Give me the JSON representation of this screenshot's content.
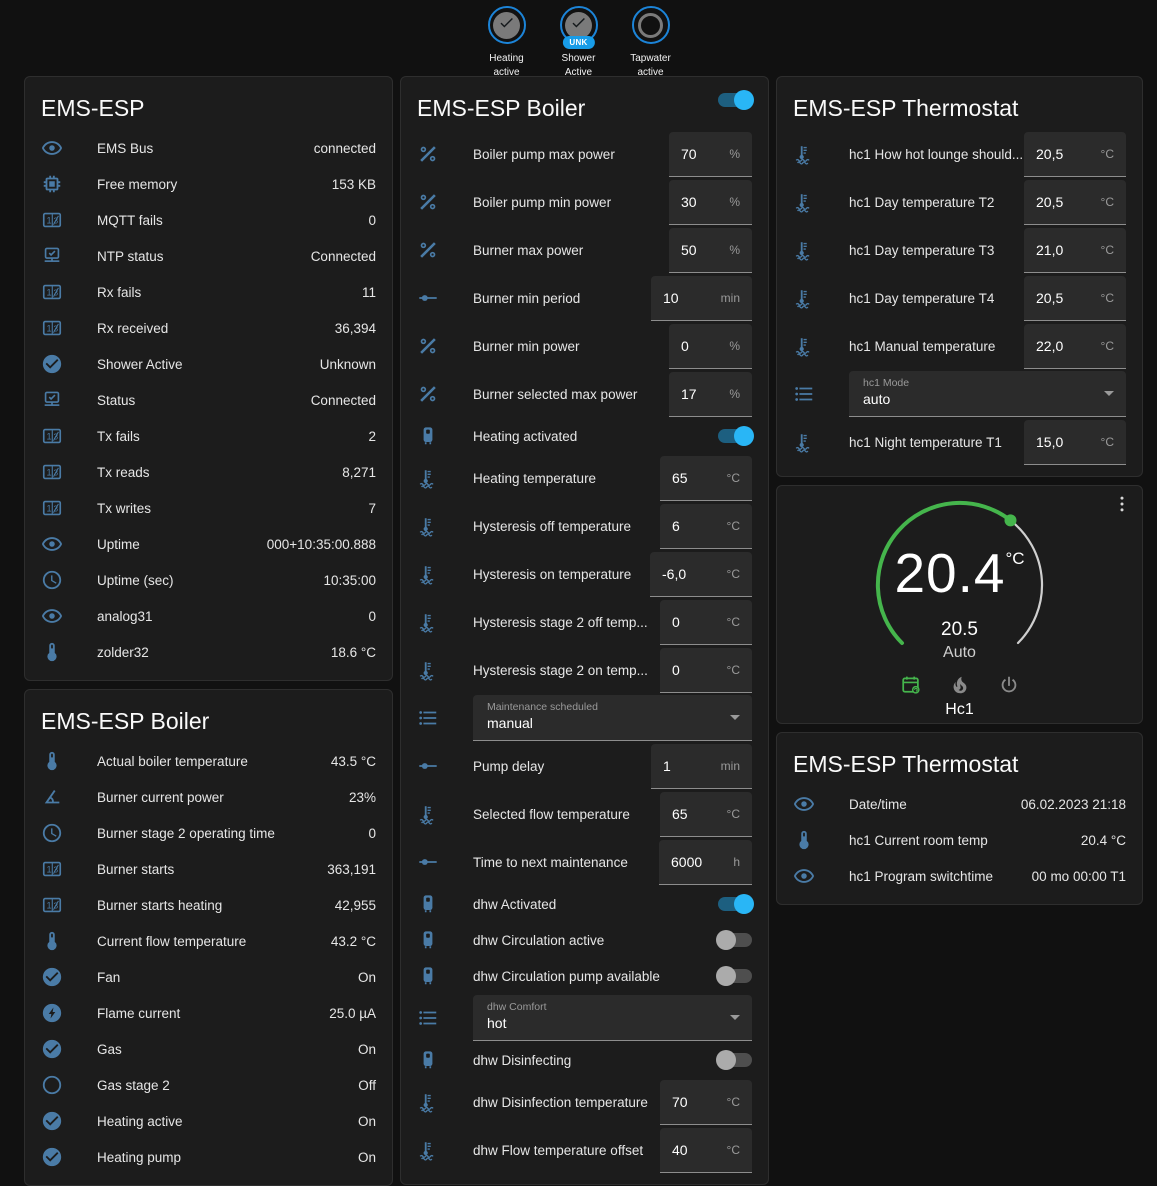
{
  "theme": {
    "page_bg": "#111111",
    "card_bg": "#1c1c1c",
    "icon_color": "#4a7ba6",
    "accent_blue": "#29b6f6",
    "badge_ring_blue": "#1c84d8",
    "chip_blue": "#189ce8",
    "dial_green": "#45b54c"
  },
  "badges": [
    {
      "label": "Heating active",
      "icon": "check",
      "state": "on"
    },
    {
      "label": "Shower Active",
      "icon": "check",
      "state": "on",
      "chip": "UNK"
    },
    {
      "label": "Tapwater active",
      "icon": "circle-outline",
      "state": "off"
    }
  ],
  "cards": {
    "ems_esp": {
      "title": "EMS-ESP",
      "rows": [
        {
          "icon": "eye",
          "label": "EMS Bus",
          "value": "connected"
        },
        {
          "icon": "chip",
          "label": "Free memory",
          "value": "153 KB"
        },
        {
          "icon": "counter",
          "label": "MQTT fails",
          "value": "0"
        },
        {
          "icon": "network",
          "label": "NTP status",
          "value": "Connected"
        },
        {
          "icon": "counter",
          "label": "Rx fails",
          "value": "11"
        },
        {
          "icon": "counter",
          "label": "Rx received",
          "value": "36,394"
        },
        {
          "icon": "check-circle",
          "label": "Shower Active",
          "value": "Unknown"
        },
        {
          "icon": "network",
          "label": "Status",
          "value": "Connected"
        },
        {
          "icon": "counter",
          "label": "Tx fails",
          "value": "2"
        },
        {
          "icon": "counter",
          "label": "Tx reads",
          "value": "8,271"
        },
        {
          "icon": "counter",
          "label": "Tx writes",
          "value": "7"
        },
        {
          "icon": "eye",
          "label": "Uptime",
          "value": "000+10:35:00.888"
        },
        {
          "icon": "clock",
          "label": "Uptime (sec)",
          "value": "10:35:00"
        },
        {
          "icon": "eye",
          "label": "analog31",
          "value": "0"
        },
        {
          "icon": "thermometer",
          "label": "zolder32",
          "value": "18.6 °C"
        }
      ]
    },
    "boiler_sensors": {
      "title": "EMS-ESP Boiler",
      "rows": [
        {
          "icon": "thermometer",
          "label": "Actual boiler temperature",
          "value": "43.5 °C"
        },
        {
          "icon": "angle",
          "label": "Burner current power",
          "value": "23%"
        },
        {
          "icon": "clock",
          "label": "Burner stage 2 operating time",
          "value": "0"
        },
        {
          "icon": "counter",
          "label": "Burner starts",
          "value": "363,191"
        },
        {
          "icon": "counter",
          "label": "Burner starts heating",
          "value": "42,955"
        },
        {
          "icon": "thermometer",
          "label": "Current flow temperature",
          "value": "43.2 °C"
        },
        {
          "icon": "check-circle",
          "label": "Fan",
          "value": "On"
        },
        {
          "icon": "flash-circle",
          "label": "Flame current",
          "value": "25.0 µA"
        },
        {
          "icon": "check-circle",
          "label": "Gas",
          "value": "On"
        },
        {
          "icon": "circle-outline",
          "label": "Gas stage 2",
          "value": "Off"
        },
        {
          "icon": "check-circle",
          "label": "Heating active",
          "value": "On"
        },
        {
          "icon": "check-circle",
          "label": "Heating pump",
          "value": "On"
        }
      ]
    },
    "boiler_controls": {
      "title": "EMS-ESP Boiler",
      "header_toggle": "on",
      "rows": [
        {
          "icon": "percent",
          "label": "Boiler pump max power",
          "value": "70",
          "unit": "%"
        },
        {
          "icon": "percent",
          "label": "Boiler pump min power",
          "value": "30",
          "unit": "%"
        },
        {
          "icon": "percent",
          "label": "Burner max power",
          "value": "50",
          "unit": "%"
        },
        {
          "icon": "slider",
          "label": "Burner min period",
          "value": "10",
          "unit": "min"
        },
        {
          "icon": "percent",
          "label": "Burner min power",
          "value": "0",
          "unit": "%"
        },
        {
          "icon": "percent",
          "label": "Burner selected max power",
          "value": "17",
          "unit": "%"
        },
        {
          "icon": "water-boiler",
          "label": "Heating activated",
          "toggle": "on"
        },
        {
          "icon": "coolant",
          "label": "Heating temperature",
          "value": "65",
          "unit": "°C"
        },
        {
          "icon": "coolant",
          "label": "Hysteresis off temperature",
          "value": "6",
          "unit": "°C"
        },
        {
          "icon": "coolant",
          "label": "Hysteresis on temperature",
          "value": "-6,0",
          "unit": "°C"
        },
        {
          "icon": "coolant",
          "label": "Hysteresis stage 2 off temp...",
          "value": "0",
          "unit": "°C"
        },
        {
          "icon": "coolant",
          "label": "Hysteresis stage 2 on temp...",
          "value": "0",
          "unit": "°C"
        },
        {
          "icon": "list",
          "select_label": "Maintenance scheduled",
          "value": "manual"
        },
        {
          "icon": "slider",
          "label": "Pump delay",
          "value": "1",
          "unit": "min"
        },
        {
          "icon": "coolant",
          "label": "Selected flow temperature",
          "value": "65",
          "unit": "°C"
        },
        {
          "icon": "slider",
          "label": "Time to next maintenance",
          "value": "6000",
          "unit": "h"
        },
        {
          "icon": "water-boiler",
          "label": "dhw Activated",
          "toggle": "on"
        },
        {
          "icon": "water-boiler",
          "label": "dhw Circulation active",
          "toggle": "off"
        },
        {
          "icon": "water-boiler",
          "label": "dhw Circulation pump available",
          "toggle": "off"
        },
        {
          "icon": "list",
          "select_label": "dhw Comfort",
          "value": "hot"
        },
        {
          "icon": "water-boiler",
          "label": "dhw Disinfecting",
          "toggle": "off"
        },
        {
          "icon": "coolant",
          "label": "dhw Disinfection temperature",
          "value": "70",
          "unit": "°C"
        },
        {
          "icon": "coolant",
          "label": "dhw Flow temperature offset",
          "value": "40",
          "unit": "°C"
        }
      ]
    },
    "thermostat_controls": {
      "title": "EMS-ESP Thermostat",
      "rows": [
        {
          "icon": "coolant",
          "label": "hc1 How hot lounge should...",
          "value": "20,5",
          "unit": "°C"
        },
        {
          "icon": "coolant",
          "label": "hc1 Day temperature T2",
          "value": "20,5",
          "unit": "°C"
        },
        {
          "icon": "coolant",
          "label": "hc1 Day temperature T3",
          "value": "21,0",
          "unit": "°C"
        },
        {
          "icon": "coolant",
          "label": "hc1 Day temperature T4",
          "value": "20,5",
          "unit": "°C"
        },
        {
          "icon": "coolant",
          "label": "hc1 Manual temperature",
          "value": "22,0",
          "unit": "°C"
        },
        {
          "icon": "list",
          "select_label": "hc1 Mode",
          "value": "auto"
        },
        {
          "icon": "coolant",
          "label": "hc1 Night temperature T1",
          "value": "15,0",
          "unit": "°C"
        }
      ]
    },
    "dial": {
      "current_temp": "20.4",
      "temp_unit": "°C",
      "target_temp": "20.5",
      "mode": "Auto",
      "zone_name": "Hc1",
      "mode_buttons": [
        {
          "icon": "calendar-sync",
          "active": true
        },
        {
          "icon": "fire",
          "active": false
        },
        {
          "icon": "power",
          "active": false
        }
      ]
    },
    "thermostat_sensors": {
      "title": "EMS-ESP Thermostat",
      "rows": [
        {
          "icon": "eye",
          "label": "Date/time",
          "value": "06.02.2023 21:18"
        },
        {
          "icon": "thermometer",
          "label": "hc1 Current room temp",
          "value": "20.4 °C"
        },
        {
          "icon": "eye",
          "label": "hc1 Program switchtime",
          "value": "00 mo 00:00 T1"
        }
      ]
    }
  }
}
